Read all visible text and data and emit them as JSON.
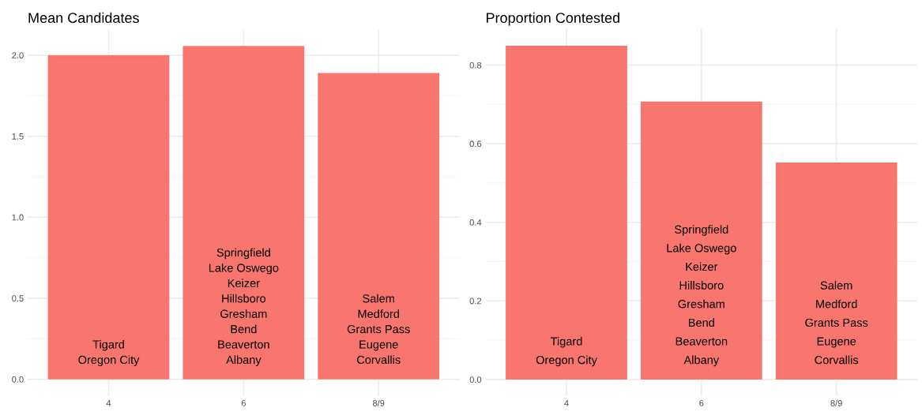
{
  "chart_data": [
    {
      "type": "bar",
      "title": "Mean Candidates",
      "categories": [
        "4",
        "6",
        "8/9"
      ],
      "values": [
        2.0,
        2.057,
        1.89
      ],
      "color": "#f8766d",
      "ylim": [
        -0.103,
        2.16
      ],
      "yticks": [
        {
          "value": 0,
          "label": "0.0"
        },
        {
          "value": 0.5,
          "label": "0.5"
        },
        {
          "value": 1,
          "label": "1.0"
        },
        {
          "value": 1.5,
          "label": "1.5"
        },
        {
          "value": 2,
          "label": "2.0"
        }
      ],
      "grid": true,
      "annotations": [
        "Tigard\nOregon City",
        "Springfield\nLake Oswego\nKeizer\nHillsboro\nGresham\nBend\nBeaverton\nAlbany",
        "Salem\nMedford\nGrants Pass\nEugene\nCorvallis"
      ]
    },
    {
      "type": "bar",
      "title": "Proportion Contested",
      "categories": [
        "4",
        "6",
        "8/9"
      ],
      "values": [
        0.849,
        0.707,
        0.552
      ],
      "color": "#f8766d",
      "ylim": [
        -0.042,
        0.891
      ],
      "yticks": [
        {
          "value": 0,
          "label": "0.0"
        },
        {
          "value": 0.2,
          "label": "0.2"
        },
        {
          "value": 0.4,
          "label": "0.4"
        },
        {
          "value": 0.6,
          "label": "0.6"
        },
        {
          "value": 0.8,
          "label": "0.8"
        }
      ],
      "grid": true,
      "annotations": [
        "Tigard\nOregon City",
        "Springfield\nLake Oswego\nKeizer\nHillsboro\nGresham\nBend\nBeaverton\nAlbany",
        "Salem\nMedford\nGrants Pass\nEugene\nCorvallis"
      ]
    }
  ]
}
